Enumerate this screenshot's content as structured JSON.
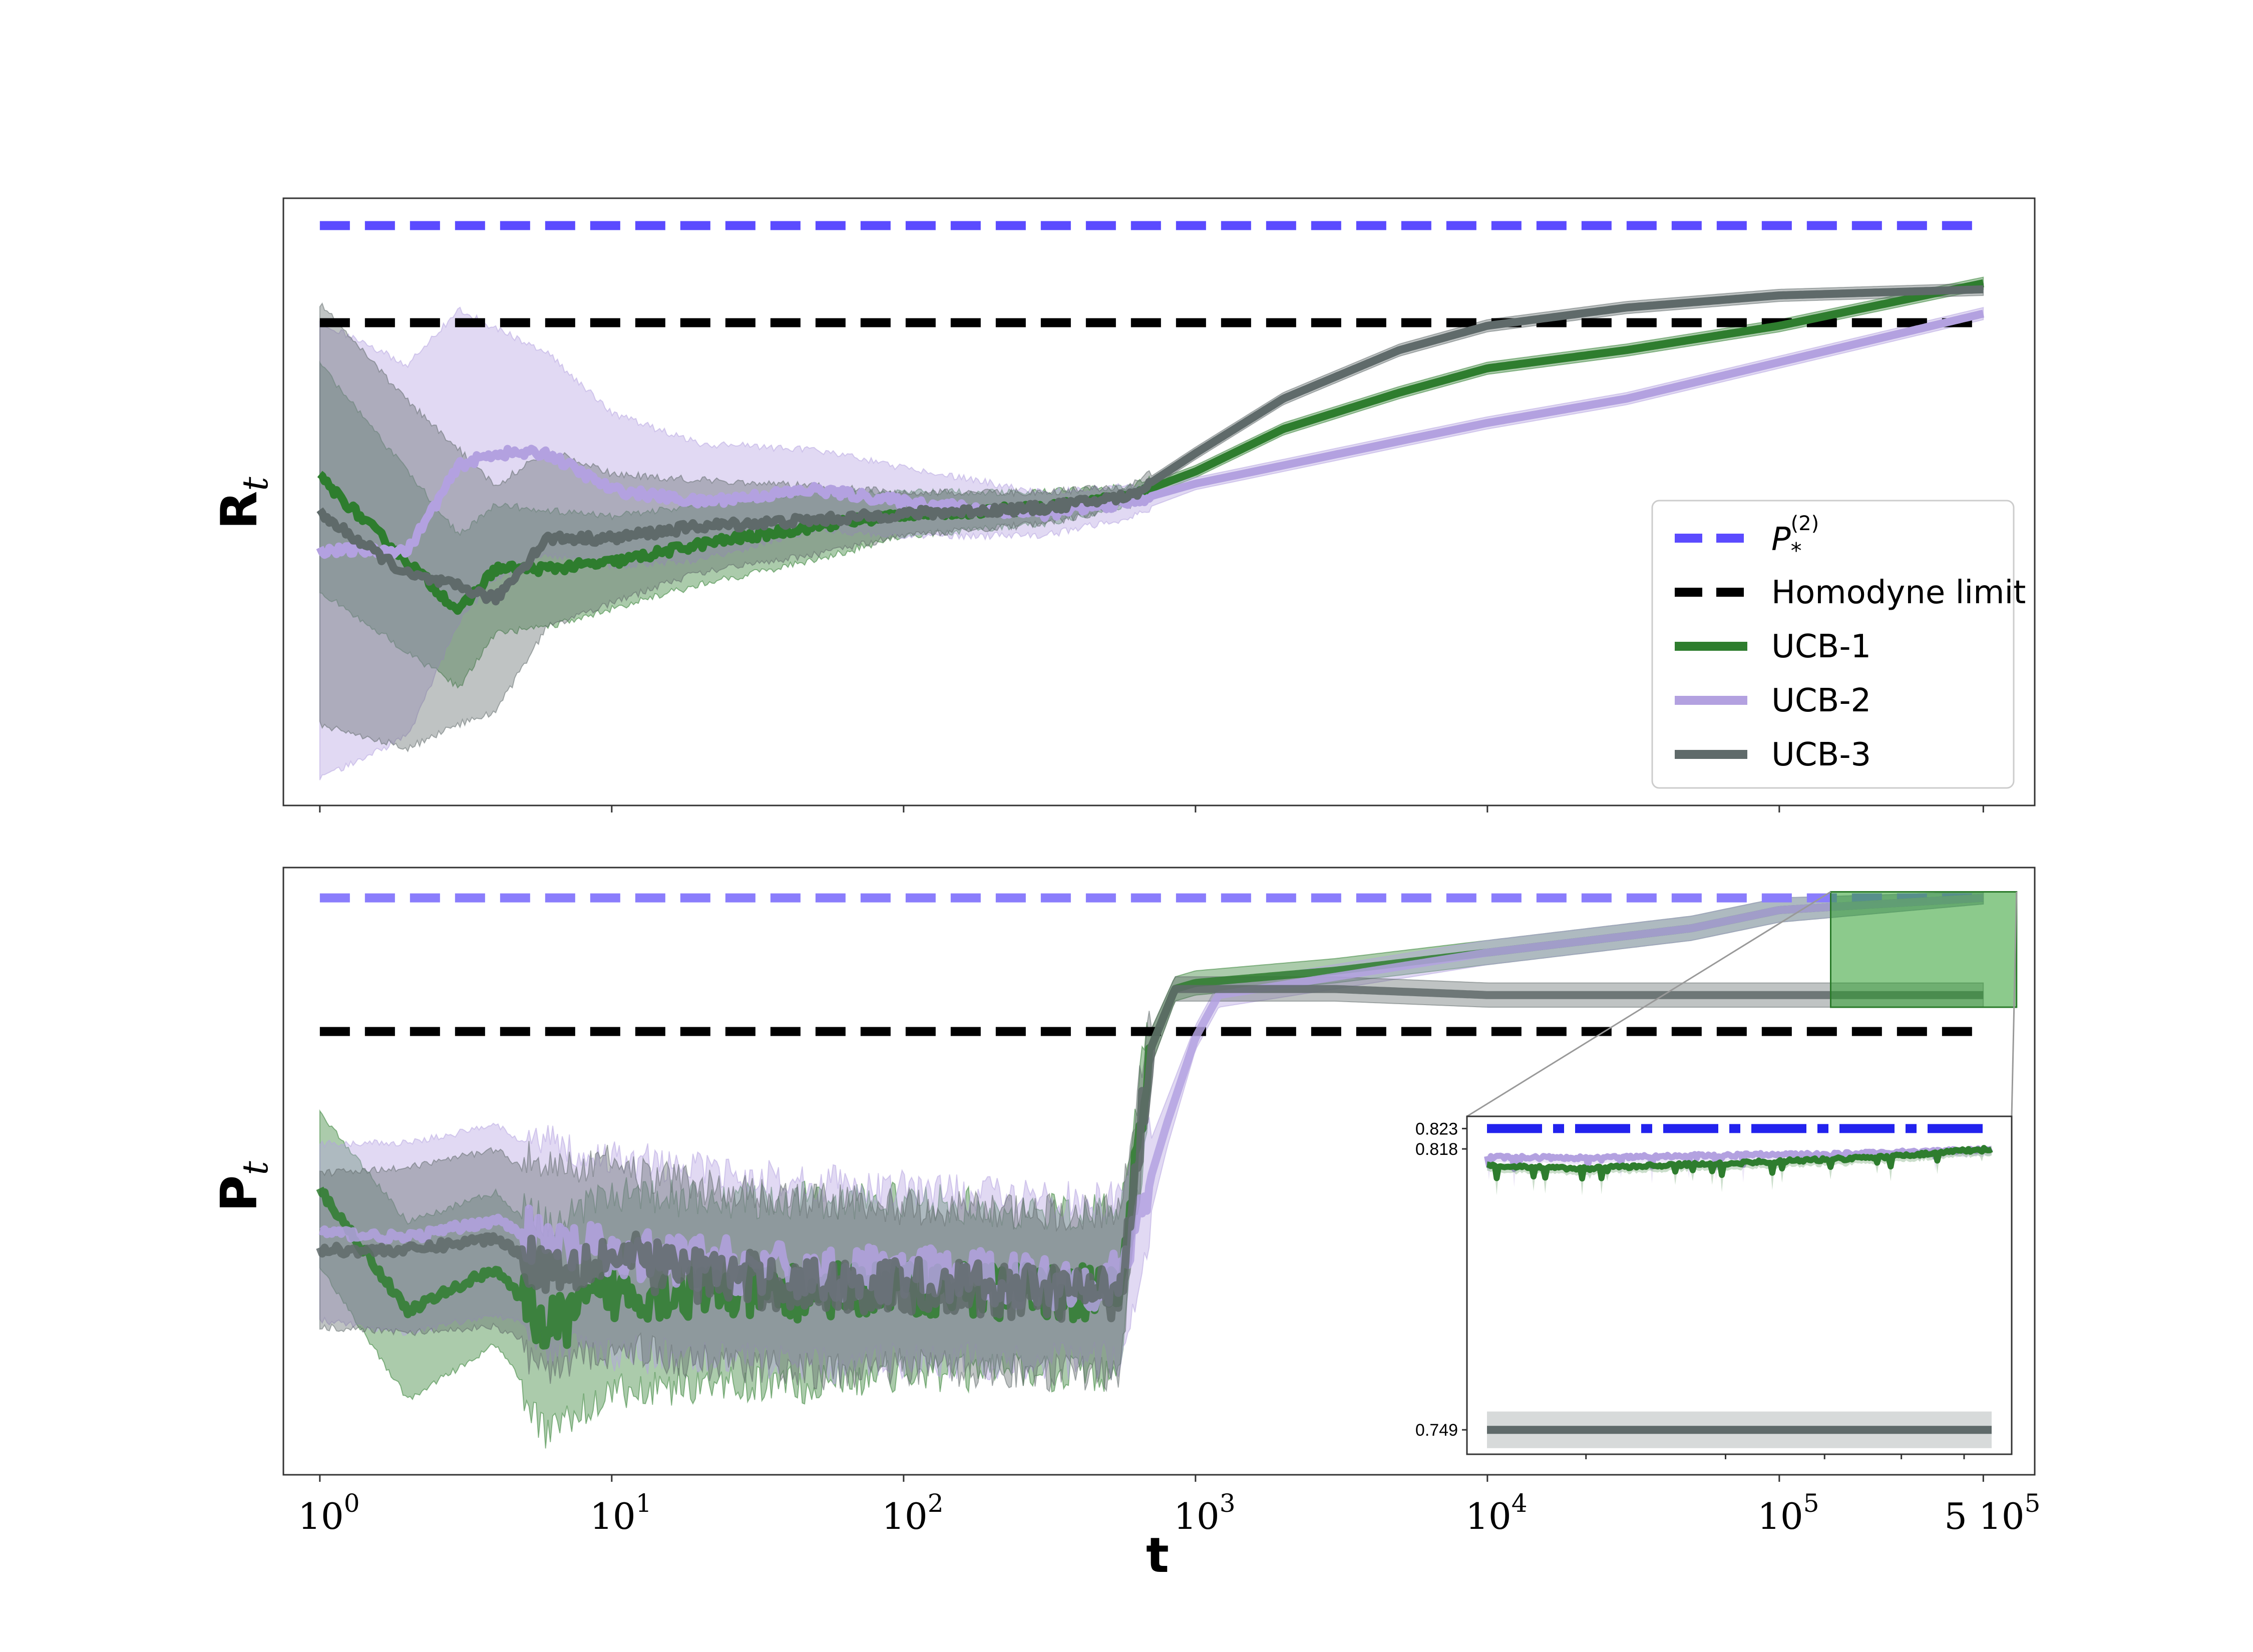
{
  "chart_data": [
    {
      "type": "line",
      "panel": "top",
      "ylabel_main": "R",
      "ylabel_sub": "t",
      "xscale": "log",
      "xlim": [
        0.75,
        750000
      ],
      "ylim": [
        0,
        1
      ],
      "grid": false,
      "x_tick_marks": [
        1,
        10,
        100,
        1000,
        10000,
        100000,
        500000
      ],
      "legend": {
        "placement": "lower-right",
        "entries": [
          {
            "label_main": "P",
            "label_sub": "*",
            "label_sup": "(2)",
            "color": "#5b4bff",
            "style": "dashed"
          },
          {
            "label": "Homodyne limit",
            "color": "#000000",
            "style": "dashed"
          },
          {
            "label": "UCB-1",
            "color": "#2e7d2e",
            "style": "solid"
          },
          {
            "label": "UCB-2",
            "color": "#b3a1e0",
            "style": "solid"
          },
          {
            "label": "UCB-3",
            "color": "#5f6a6a",
            "style": "solid"
          }
        ]
      },
      "reference_lines": [
        {
          "name": "P*(2)",
          "y": 0.955,
          "color": "#5b4bff"
        },
        {
          "name": "Homodyne limit",
          "y": 0.795,
          "color": "#000000"
        }
      ],
      "series": [
        {
          "name": "UCB-1",
          "color": "#2e7d2e",
          "x": [
            1,
            3,
            4,
            6,
            10,
            20,
            50,
            100,
            300,
            600,
            1000,
            2000,
            5000,
            10000,
            30000,
            100000,
            500000
          ],
          "y": [
            0.54,
            0.32,
            0.39,
            0.39,
            0.4,
            0.43,
            0.46,
            0.48,
            0.49,
            0.51,
            0.55,
            0.62,
            0.68,
            0.72,
            0.75,
            0.79,
            0.86
          ],
          "band": [
            0.18,
            0.12,
            0.1,
            0.09,
            0.07,
            0.06,
            0.05,
            0.03,
            0.02,
            0.01,
            0.01,
            0.01,
            0.01,
            0.01,
            0.01,
            0.01,
            0.01
          ]
        },
        {
          "name": "UCB-2",
          "color": "#b3a1e0",
          "x": [
            1,
            2,
            3,
            4,
            6,
            10,
            20,
            50,
            100,
            300,
            600,
            1000,
            2000,
            5000,
            10000,
            30000,
            100000,
            500000
          ],
          "y": [
            0.42,
            0.42,
            0.56,
            0.58,
            0.58,
            0.52,
            0.5,
            0.52,
            0.5,
            0.48,
            0.5,
            0.53,
            0.56,
            0.6,
            0.63,
            0.67,
            0.73,
            0.81
          ],
          "band": [
            0.37,
            0.3,
            0.25,
            0.2,
            0.16,
            0.12,
            0.09,
            0.06,
            0.05,
            0.03,
            0.02,
            0.01,
            0.01,
            0.01,
            0.01,
            0.01,
            0.01,
            0.01
          ]
        },
        {
          "name": "UCB-3",
          "color": "#5f6a6a",
          "x": [
            1,
            2,
            3,
            4,
            6,
            10,
            20,
            50,
            100,
            300,
            600,
            1000,
            2000,
            5000,
            10000,
            30000,
            100000,
            500000
          ],
          "y": [
            0.48,
            0.38,
            0.36,
            0.34,
            0.44,
            0.44,
            0.46,
            0.47,
            0.48,
            0.49,
            0.51,
            0.58,
            0.67,
            0.75,
            0.79,
            0.82,
            0.84,
            0.85
          ],
          "band": [
            0.34,
            0.28,
            0.22,
            0.18,
            0.14,
            0.1,
            0.07,
            0.05,
            0.03,
            0.02,
            0.01,
            0.01,
            0.01,
            0.01,
            0.01,
            0.01,
            0.01,
            0.01
          ]
        }
      ]
    },
    {
      "type": "line",
      "panel": "bottom",
      "ylabel_main": "P",
      "ylabel_sub": "t",
      "xlabel": "t",
      "xscale": "log",
      "xlim": [
        0.75,
        750000
      ],
      "ylim": [
        0,
        1
      ],
      "grid": false,
      "x_ticks": [
        {
          "value": 1,
          "label": "10",
          "sup": "0"
        },
        {
          "value": 10,
          "label": "10",
          "sup": "1"
        },
        {
          "value": 100,
          "label": "10",
          "sup": "2"
        },
        {
          "value": 1000,
          "label": "10",
          "sup": "3"
        },
        {
          "value": 10000,
          "label": "10",
          "sup": "4"
        },
        {
          "value": 100000,
          "label": "10",
          "sup": "5"
        },
        {
          "value": 500000,
          "label": "5 10",
          "sup": "5"
        }
      ],
      "reference_lines": [
        {
          "name": "P*(2)",
          "y": 0.95,
          "color": "#8a7dfc"
        },
        {
          "name": "Homodyne limit",
          "y": 0.73,
          "color": "#000000"
        }
      ],
      "series": [
        {
          "name": "UCB-1",
          "color": "#2e7d2e",
          "x": [
            1,
            2,
            4,
            6,
            10,
            20,
            50,
            100,
            300,
            550,
            700,
            850,
            1000,
            3000,
            10000,
            50000,
            100000,
            500000
          ],
          "y": [
            0.47,
            0.27,
            0.34,
            0.24,
            0.3,
            0.3,
            0.3,
            0.31,
            0.3,
            0.3,
            0.7,
            0.8,
            0.81,
            0.83,
            0.86,
            0.9,
            0.93,
            0.95
          ],
          "band": [
            0.12,
            0.14,
            0.12,
            0.14,
            0.13,
            0.12,
            0.12,
            0.11,
            0.1,
            0.1,
            0.03,
            0.02,
            0.02,
            0.02,
            0.02,
            0.02,
            0.02,
            0.01
          ]
        },
        {
          "name": "UCB-2",
          "color": "#b3a1e0",
          "x": [
            1,
            2,
            4,
            6,
            10,
            20,
            50,
            100,
            300,
            550,
            800,
            1000,
            1200,
            3000,
            10000,
            50000,
            100000,
            500000
          ],
          "y": [
            0.4,
            0.39,
            0.42,
            0.38,
            0.36,
            0.35,
            0.33,
            0.33,
            0.32,
            0.32,
            0.58,
            0.72,
            0.79,
            0.82,
            0.86,
            0.9,
            0.93,
            0.95
          ],
          "band": [
            0.14,
            0.15,
            0.15,
            0.14,
            0.13,
            0.12,
            0.12,
            0.11,
            0.1,
            0.1,
            0.04,
            0.02,
            0.02,
            0.02,
            0.02,
            0.02,
            0.02,
            0.01
          ]
        },
        {
          "name": "UCB-3",
          "color": "#5f6a6a",
          "x": [
            1,
            2,
            4,
            6,
            10,
            20,
            50,
            100,
            300,
            550,
            700,
            850,
            1000,
            3000,
            10000,
            50000,
            100000,
            500000
          ],
          "y": [
            0.37,
            0.37,
            0.39,
            0.34,
            0.36,
            0.33,
            0.31,
            0.31,
            0.3,
            0.3,
            0.7,
            0.8,
            0.8,
            0.8,
            0.79,
            0.79,
            0.79,
            0.79
          ],
          "band": [
            0.12,
            0.13,
            0.14,
            0.13,
            0.12,
            0.11,
            0.11,
            0.1,
            0.1,
            0.1,
            0.03,
            0.02,
            0.02,
            0.02,
            0.02,
            0.02,
            0.02,
            0.02
          ]
        }
      ],
      "zoom_box": {
        "x0": 150000,
        "x1": 650000,
        "y0": 0.77,
        "y1": 0.96,
        "color": "#2e9e2e"
      },
      "inset": {
        "ylim": [
          0.743,
          0.826
        ],
        "y_ticks": [
          0.823,
          0.818,
          0.749
        ],
        "y_tick_labels": [
          "0.823",
          "0.818",
          "0.749"
        ],
        "x_tick_marks": [
          200000,
          300000,
          400000,
          500000,
          600000
        ],
        "x_range": [
          150000,
          650000
        ],
        "reference": {
          "name": "P*(2)",
          "y": 0.823,
          "color": "#2222ee"
        },
        "series": [
          {
            "name": "UCB-1",
            "color": "#2e7d2e",
            "x": [
              150000,
              200000,
              250000,
              300000,
              350000,
              400000,
              450000,
              500000,
              550000,
              600000,
              650000
            ],
            "y": [
              0.8138,
              0.8132,
              0.814,
              0.8144,
              0.815,
              0.8154,
              0.8158,
              0.8163,
              0.817,
              0.8176,
              0.818
            ]
          },
          {
            "name": "UCB-2",
            "color": "#b3a1e0",
            "x": [
              150000,
              200000,
              250000,
              300000,
              350000,
              400000,
              450000,
              500000,
              550000,
              600000,
              650000
            ],
            "y": [
              0.816,
              0.8158,
              0.8162,
              0.8165,
              0.8167,
              0.8166,
              0.817,
              0.8172,
              0.8174,
              0.8177,
              0.818
            ]
          },
          {
            "name": "UCB-3",
            "color": "#5f6a6a",
            "x": [
              150000,
              650000
            ],
            "y": [
              0.749,
              0.749
            ],
            "band": 0.0045
          }
        ]
      }
    }
  ]
}
